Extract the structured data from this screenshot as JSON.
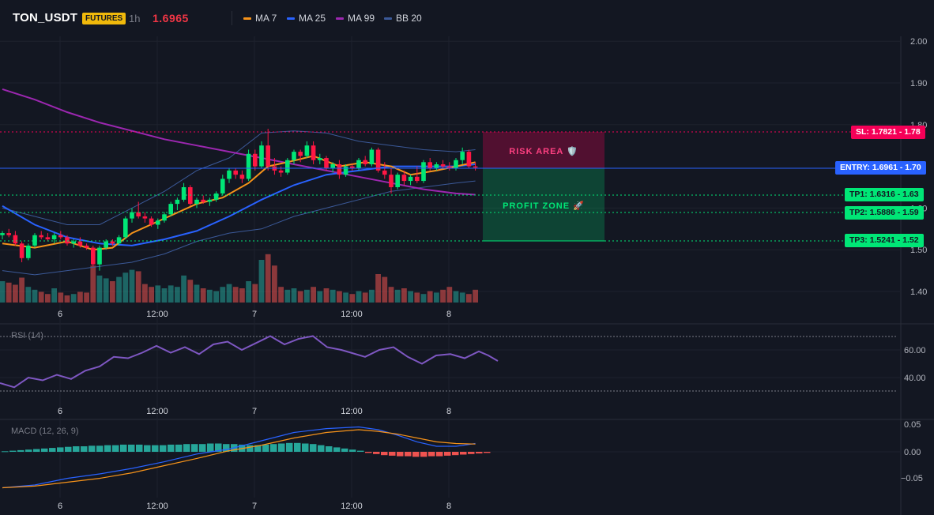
{
  "header": {
    "symbol": "TON_USDT",
    "badge": "FUTURES",
    "timeframe": "1h",
    "last_price": "1.6965",
    "legend": [
      {
        "label": "MA 7",
        "color": "#f7931a"
      },
      {
        "label": "MA 25",
        "color": "#2962ff"
      },
      {
        "label": "MA 99",
        "color": "#9c27b0"
      },
      {
        "label": "BB 20",
        "color": "#3b5998"
      }
    ]
  },
  "levels": {
    "sl": {
      "label": "SL: 1.7821",
      "price_label": "1.78",
      "color": "#f50057"
    },
    "entry": {
      "label": "ENTRY: 1.6961",
      "price_label": "1.70",
      "color": "#2962ff"
    },
    "tp1": {
      "label": "TP1: 1.6316",
      "price_label": "1.63",
      "color": "#00e676"
    },
    "tp2": {
      "label": "TP2: 1.5886",
      "price_label": "1.59",
      "color": "#00e676"
    },
    "tp3": {
      "label": "TP3: 1.5241",
      "price_label": "1.52",
      "color": "#00e676"
    }
  },
  "zones": {
    "risk_label": "RISK AREA 🛡️",
    "profit_label": "PROFIT ZONE 🚀"
  },
  "rsi": {
    "label": "RSI (14)",
    "ticks": [
      "60.00",
      "40.00"
    ]
  },
  "macd": {
    "label": "MACD (12, 26, 9)",
    "ticks": [
      "0.05",
      "0.00",
      "−0.05"
    ]
  },
  "price_axis": {
    "ticks": [
      "2.00",
      "1.90",
      "1.80",
      "1.60",
      "1.50",
      "1.40"
    ]
  },
  "time_axis": {
    "ticks": [
      "6",
      "12:00",
      "7",
      "12:00",
      "8"
    ]
  },
  "chart_data": {
    "type": "candlestick",
    "ylim": [
      1.37,
      2.01
    ],
    "up_color": "#00e676",
    "down_color": "#ff1744",
    "candles": [
      [
        1.535,
        1.545,
        1.525,
        1.54
      ],
      [
        1.54,
        1.55,
        1.53,
        1.535
      ],
      [
        1.535,
        1.545,
        1.51,
        1.515
      ],
      [
        1.515,
        1.52,
        1.47,
        1.48
      ],
      [
        1.48,
        1.515,
        1.475,
        1.51
      ],
      [
        1.51,
        1.54,
        1.505,
        1.535
      ],
      [
        1.535,
        1.545,
        1.525,
        1.53
      ],
      [
        1.53,
        1.54,
        1.52,
        1.525
      ],
      [
        1.525,
        1.54,
        1.515,
        1.535
      ],
      [
        1.535,
        1.545,
        1.525,
        1.53
      ],
      [
        1.53,
        1.535,
        1.51,
        1.515
      ],
      [
        1.515,
        1.525,
        1.505,
        1.52
      ],
      [
        1.52,
        1.53,
        1.505,
        1.51
      ],
      [
        1.51,
        1.515,
        1.5,
        1.505
      ],
      [
        1.505,
        1.51,
        1.46,
        1.465
      ],
      [
        1.465,
        1.51,
        1.45,
        1.505
      ],
      [
        1.505,
        1.525,
        1.5,
        1.52
      ],
      [
        1.52,
        1.525,
        1.51,
        1.515
      ],
      [
        1.515,
        1.535,
        1.51,
        1.53
      ],
      [
        1.53,
        1.58,
        1.525,
        1.575
      ],
      [
        1.575,
        1.6,
        1.565,
        1.59
      ],
      [
        1.59,
        1.615,
        1.575,
        1.58
      ],
      [
        1.58,
        1.59,
        1.565,
        1.575
      ],
      [
        1.575,
        1.58,
        1.555,
        1.56
      ],
      [
        1.56,
        1.575,
        1.55,
        1.57
      ],
      [
        1.57,
        1.59,
        1.565,
        1.585
      ],
      [
        1.585,
        1.615,
        1.58,
        1.61
      ],
      [
        1.61,
        1.625,
        1.595,
        1.62
      ],
      [
        1.62,
        1.66,
        1.615,
        1.65
      ],
      [
        1.65,
        1.655,
        1.605,
        1.61
      ],
      [
        1.61,
        1.625,
        1.6,
        1.62
      ],
      [
        1.62,
        1.63,
        1.61,
        1.615
      ],
      [
        1.615,
        1.625,
        1.605,
        1.62
      ],
      [
        1.62,
        1.64,
        1.615,
        1.635
      ],
      [
        1.635,
        1.68,
        1.63,
        1.67
      ],
      [
        1.67,
        1.695,
        1.66,
        1.69
      ],
      [
        1.69,
        1.695,
        1.67,
        1.68
      ],
      [
        1.68,
        1.69,
        1.66,
        1.67
      ],
      [
        1.67,
        1.74,
        1.665,
        1.73
      ],
      [
        1.73,
        1.74,
        1.69,
        1.7
      ],
      [
        1.7,
        1.76,
        1.695,
        1.75
      ],
      [
        1.75,
        1.79,
        1.69,
        1.7
      ],
      [
        1.7,
        1.72,
        1.68,
        1.69
      ],
      [
        1.69,
        1.7,
        1.675,
        1.685
      ],
      [
        1.685,
        1.72,
        1.68,
        1.715
      ],
      [
        1.715,
        1.74,
        1.705,
        1.735
      ],
      [
        1.735,
        1.74,
        1.71,
        1.725
      ],
      [
        1.725,
        1.76,
        1.72,
        1.75
      ],
      [
        1.75,
        1.76,
        1.705,
        1.715
      ],
      [
        1.715,
        1.73,
        1.705,
        1.72
      ],
      [
        1.72,
        1.725,
        1.69,
        1.695
      ],
      [
        1.695,
        1.71,
        1.685,
        1.705
      ],
      [
        1.705,
        1.715,
        1.67,
        1.68
      ],
      [
        1.68,
        1.705,
        1.675,
        1.7
      ],
      [
        1.7,
        1.705,
        1.69,
        1.695
      ],
      [
        1.695,
        1.72,
        1.69,
        1.715
      ],
      [
        1.715,
        1.725,
        1.7,
        1.705
      ],
      [
        1.705,
        1.745,
        1.7,
        1.74
      ],
      [
        1.74,
        1.745,
        1.685,
        1.69
      ],
      [
        1.69,
        1.71,
        1.67,
        1.68
      ],
      [
        1.68,
        1.695,
        1.635,
        1.65
      ],
      [
        1.65,
        1.685,
        1.645,
        1.68
      ],
      [
        1.68,
        1.69,
        1.655,
        1.665
      ],
      [
        1.665,
        1.68,
        1.655,
        1.675
      ],
      [
        1.675,
        1.7,
        1.66,
        1.665
      ],
      [
        1.665,
        1.715,
        1.66,
        1.71
      ],
      [
        1.71,
        1.72,
        1.69,
        1.695
      ],
      [
        1.695,
        1.71,
        1.69,
        1.705
      ],
      [
        1.705,
        1.715,
        1.695,
        1.7
      ],
      [
        1.7,
        1.71,
        1.69,
        1.695
      ],
      [
        1.695,
        1.72,
        1.69,
        1.715
      ],
      [
        1.715,
        1.745,
        1.705,
        1.735
      ],
      [
        1.735,
        1.74,
        1.695,
        1.7
      ],
      [
        1.7,
        1.71,
        1.69,
        1.697
      ]
    ],
    "volume": [
      30,
      28,
      25,
      35,
      22,
      18,
      15,
      12,
      20,
      14,
      10,
      12,
      15,
      14,
      52,
      38,
      34,
      30,
      36,
      42,
      46,
      44,
      26,
      22,
      24,
      20,
      24,
      22,
      38,
      32,
      25,
      20,
      18,
      16,
      22,
      26,
      22,
      20,
      30,
      26,
      60,
      68,
      52,
      22,
      18,
      20,
      16,
      18,
      22,
      16,
      20,
      18,
      16,
      14,
      12,
      16,
      14,
      18,
      40,
      36,
      22,
      18,
      20,
      16,
      14,
      12,
      16,
      14,
      18,
      22,
      16,
      14,
      12,
      18
    ],
    "ma7": [
      [
        0,
        1.515
      ],
      [
        5,
        1.505
      ],
      [
        10,
        1.52
      ],
      [
        14,
        1.5
      ],
      [
        17,
        1.505
      ],
      [
        20,
        1.54
      ],
      [
        25,
        1.575
      ],
      [
        30,
        1.61
      ],
      [
        34,
        1.625
      ],
      [
        38,
        1.66
      ],
      [
        41,
        1.7
      ],
      [
        44,
        1.71
      ],
      [
        48,
        1.725
      ],
      [
        52,
        1.7
      ],
      [
        56,
        1.71
      ],
      [
        60,
        1.7
      ],
      [
        63,
        1.68
      ],
      [
        67,
        1.69
      ],
      [
        70,
        1.7
      ],
      [
        73,
        1.71
      ]
    ],
    "ma25": [
      [
        0,
        1.605
      ],
      [
        5,
        1.56
      ],
      [
        10,
        1.53
      ],
      [
        15,
        1.515
      ],
      [
        20,
        1.51
      ],
      [
        25,
        1.525
      ],
      [
        30,
        1.545
      ],
      [
        35,
        1.58
      ],
      [
        40,
        1.62
      ],
      [
        45,
        1.655
      ],
      [
        50,
        1.68
      ],
      [
        55,
        1.69
      ],
      [
        60,
        1.7
      ],
      [
        65,
        1.7
      ],
      [
        70,
        1.7
      ],
      [
        73,
        1.705
      ]
    ],
    "ma99": [
      [
        0,
        1.885
      ],
      [
        5,
        1.86
      ],
      [
        10,
        1.83
      ],
      [
        15,
        1.805
      ],
      [
        20,
        1.785
      ],
      [
        25,
        1.765
      ],
      [
        30,
        1.75
      ],
      [
        35,
        1.735
      ],
      [
        40,
        1.72
      ],
      [
        45,
        1.705
      ],
      [
        50,
        1.69
      ],
      [
        55,
        1.675
      ],
      [
        60,
        1.66
      ],
      [
        65,
        1.645
      ],
      [
        70,
        1.635
      ],
      [
        73,
        1.632
      ]
    ],
    "bb_upper": [
      [
        0,
        1.6
      ],
      [
        5,
        1.58
      ],
      [
        10,
        1.56
      ],
      [
        15,
        1.56
      ],
      [
        20,
        1.6
      ],
      [
        25,
        1.64
      ],
      [
        30,
        1.69
      ],
      [
        35,
        1.72
      ],
      [
        40,
        1.78
      ],
      [
        45,
        1.785
      ],
      [
        50,
        1.78
      ],
      [
        55,
        1.76
      ],
      [
        60,
        1.75
      ],
      [
        65,
        1.74
      ],
      [
        70,
        1.735
      ],
      [
        73,
        1.74
      ]
    ],
    "bb_lower": [
      [
        0,
        1.45
      ],
      [
        5,
        1.44
      ],
      [
        10,
        1.45
      ],
      [
        15,
        1.46
      ],
      [
        20,
        1.47
      ],
      [
        25,
        1.49
      ],
      [
        30,
        1.52
      ],
      [
        35,
        1.54
      ],
      [
        40,
        1.55
      ],
      [
        45,
        1.58
      ],
      [
        50,
        1.6
      ],
      [
        55,
        1.62
      ],
      [
        60,
        1.64
      ],
      [
        65,
        1.65
      ],
      [
        70,
        1.66
      ],
      [
        73,
        1.665
      ]
    ],
    "rsi": [
      [
        0,
        36
      ],
      [
        3,
        33
      ],
      [
        6,
        40
      ],
      [
        9,
        38
      ],
      [
        12,
        42
      ],
      [
        15,
        39
      ],
      [
        18,
        45
      ],
      [
        21,
        48
      ],
      [
        24,
        55
      ],
      [
        27,
        54
      ],
      [
        30,
        58
      ],
      [
        33,
        63
      ],
      [
        36,
        58
      ],
      [
        39,
        62
      ],
      [
        42,
        57
      ],
      [
        45,
        64
      ],
      [
        48,
        66
      ],
      [
        51,
        60
      ],
      [
        54,
        65
      ],
      [
        57,
        70
      ],
      [
        60,
        64
      ],
      [
        63,
        68
      ],
      [
        66,
        70
      ],
      [
        69,
        62
      ],
      [
        72,
        60
      ],
      [
        74,
        58
      ],
      [
        77,
        55
      ],
      [
        80,
        60
      ],
      [
        83,
        62
      ],
      [
        86,
        55
      ],
      [
        89,
        50
      ],
      [
        92,
        56
      ],
      [
        95,
        57
      ],
      [
        98,
        54
      ],
      [
        101,
        59
      ],
      [
        103,
        56
      ],
      [
        105,
        52
      ]
    ],
    "macd_hist": [
      0.001,
      0.002,
      0.003,
      0.004,
      0.005,
      0.006,
      0.007,
      0.008,
      0.009,
      0.01,
      0.01,
      0.011,
      0.011,
      0.012,
      0.012,
      0.013,
      0.013,
      0.013,
      0.012,
      0.012,
      0.012,
      0.013,
      0.013,
      0.014,
      0.014,
      0.014,
      0.015,
      0.015,
      0.014,
      0.014,
      0.013,
      0.012,
      0.012,
      0.013,
      0.014,
      0.015,
      0.016,
      0.016,
      0.015,
      0.014,
      0.012,
      0.01,
      0.008,
      0.006,
      0.004,
      0.002,
      -0.002,
      -0.004,
      -0.006,
      -0.007,
      -0.008,
      -0.008,
      -0.009,
      -0.009,
      -0.008,
      -0.008,
      -0.007,
      -0.006,
      -0.005,
      -0.004,
      -0.003,
      -0.002
    ],
    "macd_line": [
      [
        0,
        -0.065
      ],
      [
        5,
        -0.06
      ],
      [
        10,
        -0.048
      ],
      [
        15,
        -0.04
      ],
      [
        20,
        -0.03
      ],
      [
        25,
        -0.018
      ],
      [
        30,
        -0.004
      ],
      [
        35,
        0.005
      ],
      [
        40,
        0.02
      ],
      [
        45,
        0.035
      ],
      [
        50,
        0.042
      ],
      [
        55,
        0.045
      ],
      [
        58,
        0.04
      ],
      [
        61,
        0.03
      ],
      [
        64,
        0.018
      ],
      [
        67,
        0.01
      ],
      [
        70,
        0.01
      ],
      [
        73,
        0.015
      ]
    ],
    "signal_line": [
      [
        0,
        -0.065
      ],
      [
        5,
        -0.062
      ],
      [
        10,
        -0.055
      ],
      [
        15,
        -0.048
      ],
      [
        20,
        -0.038
      ],
      [
        25,
        -0.025
      ],
      [
        30,
        -0.012
      ],
      [
        35,
        0.002
      ],
      [
        40,
        0.012
      ],
      [
        45,
        0.025
      ],
      [
        50,
        0.035
      ],
      [
        55,
        0.04
      ],
      [
        58,
        0.037
      ],
      [
        61,
        0.032
      ],
      [
        64,
        0.025
      ],
      [
        67,
        0.018
      ],
      [
        70,
        0.015
      ],
      [
        73,
        0.014
      ]
    ]
  }
}
